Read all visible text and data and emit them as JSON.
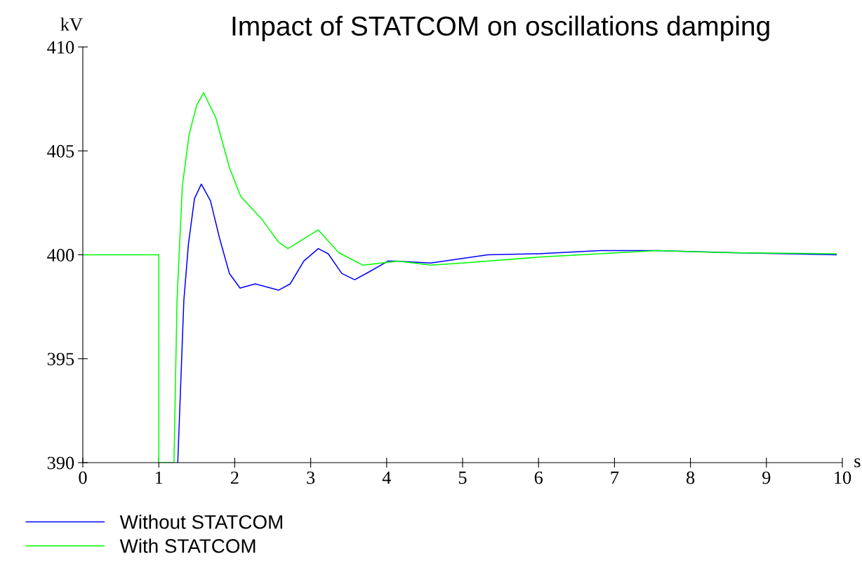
{
  "chart_data": {
    "type": "line",
    "title": "Impact of STATCOM on oscillations damping",
    "xlabel": "s",
    "ylabel": "kV",
    "xlim": [
      0,
      10
    ],
    "ylim": [
      390,
      410
    ],
    "xticks": [
      0,
      1,
      2,
      3,
      4,
      5,
      6,
      7,
      8,
      9,
      10
    ],
    "yticks": [
      390,
      395,
      400,
      405,
      410
    ],
    "grid": false,
    "legend": "bottom left",
    "marker": "none",
    "line_style": "solid",
    "series": [
      {
        "name": "Without STATCOM",
        "color": "#0000ff",
        "x": [
          1.25,
          1.33,
          1.39,
          1.47,
          1.56,
          1.68,
          1.8,
          1.93,
          2.07,
          2.27,
          2.58,
          2.73,
          2.91,
          3.1,
          3.23,
          3.41,
          3.58,
          3.78,
          4.02,
          4.12,
          4.58,
          5.33,
          6.0,
          6.81,
          7.56,
          8.57,
          9.92
        ],
        "values": [
          390,
          397.8,
          400.5,
          402.7,
          403.4,
          402.6,
          400.8,
          399.1,
          398.4,
          398.6,
          398.3,
          398.6,
          399.7,
          400.3,
          400.05,
          399.1,
          398.8,
          399.2,
          399.7,
          399.7,
          399.6,
          400.0,
          400.05,
          400.2,
          400.2,
          400.1,
          400.0
        ]
      },
      {
        "name": "With STATCOM",
        "color": "#00ff00",
        "x": [
          0,
          1.0,
          1.0,
          1.2,
          1.24,
          1.31,
          1.4,
          1.5,
          1.59,
          1.75,
          1.93,
          2.08,
          2.36,
          2.58,
          2.7,
          3.1,
          3.37,
          3.69,
          4.15,
          4.58,
          5.0,
          6.05,
          7.56,
          8.5,
          9.92
        ],
        "values": [
          400,
          400,
          390,
          390,
          397.8,
          403.3,
          405.8,
          407.2,
          407.8,
          406.6,
          404.2,
          402.8,
          401.7,
          400.6,
          400.3,
          401.2,
          400.1,
          399.5,
          399.7,
          399.5,
          399.6,
          399.9,
          400.2,
          400.1,
          400.05
        ]
      }
    ]
  }
}
